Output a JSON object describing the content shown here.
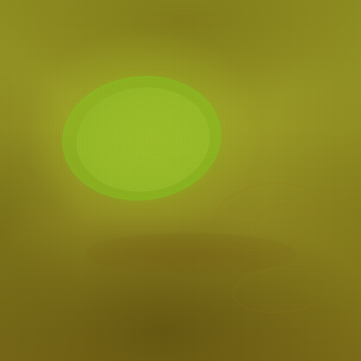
{
  "image": {
    "colors": {
      "base": "#909022",
      "highlight": "#9ebf2a",
      "glow": "#82cd1e",
      "shadow": "#5f500f"
    }
  }
}
